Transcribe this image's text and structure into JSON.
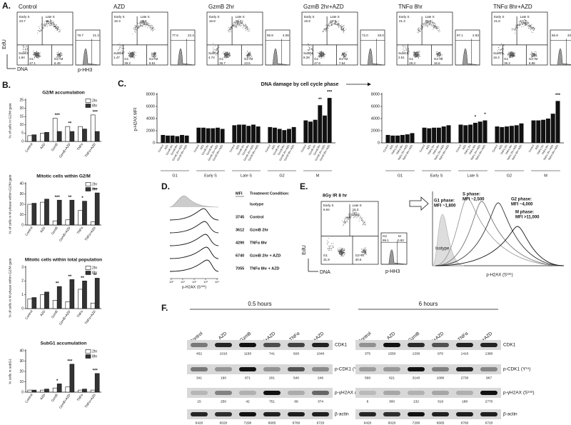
{
  "panel_a": {
    "label": "A.",
    "y_axis": "EdU",
    "x_axis": "DNA",
    "hist_axis": "p-HH3",
    "gate_labels": [
      "Early S",
      "Late S",
      "SubG1",
      "G1",
      "G2+M"
    ],
    "plots": [
      {
        "title": "Control",
        "gates": [
          "23.7",
          "18.9",
          "1.94",
          "47.1",
          "5.49"
        ],
        "hist": [
          "78.7",
          "21.3"
        ]
      },
      {
        "title": "AZD",
        "gates": [
          "32.3",
          "19.3",
          "1.47",
          "39.2",
          "5.81"
        ],
        "hist": [
          "77.6",
          "22.4"
        ]
      },
      {
        "title": "GzmB 2hr",
        "gates": [
          "16.8",
          "25.7",
          "4.74",
          "36.7",
          "13.5"
        ],
        "hist": [
          "95.9",
          "4.08"
        ]
      },
      {
        "title": "GzmB 2hr+AZD",
        "gates": [
          "15.9",
          "17.9",
          "8.28",
          "47.6",
          "7.64"
        ],
        "hist": [
          "72.0",
          "28.0"
        ]
      },
      {
        "title": "TNFα 8hr",
        "gates": [
          "21.3",
          "28.8",
          "2.61",
          "28.3",
          "16.6"
        ],
        "hist": [
          "97.1",
          "2.93"
        ]
      },
      {
        "title": "TNFα 8hr+AZD",
        "gates": [
          "21.8",
          "17.7",
          "16.3",
          "35.2",
          "6.86"
        ],
        "hist": [
          "66.9",
          "33.1"
        ]
      }
    ]
  },
  "panel_b": {
    "label": "B.",
    "categories": [
      "Control",
      "AZD",
      "GzmB",
      "GzmB+AZD",
      "TNFα",
      "TNFα+AZD"
    ],
    "charts": [
      {
        "title": "G2/M accumulation",
        "ylabel": "% of cells in G2/M gate",
        "ylim": [
          0,
          25
        ],
        "yticks": [
          0,
          5,
          10,
          15,
          20,
          25
        ],
        "series": [
          {
            "name": "2hr",
            "color": "#ffffff",
            "values": [
              3.5,
              5,
              14,
              9,
              9,
              16
            ]
          },
          {
            "name": "8hr",
            "color": "#333333",
            "values": [
              4,
              5.5,
              6,
              6,
              7.5,
              6
            ]
          }
        ],
        "annotations": [
          "***",
          "**",
          "***"
        ]
      },
      {
        "title": "Mitotic cells within G2/M",
        "ylabel": "% of cells in M-phase within G2/M gate",
        "ylim": [
          0,
          40
        ],
        "yticks": [
          0,
          10,
          20,
          30,
          40
        ],
        "series": [
          {
            "name": "2hr",
            "color": "#ffffff",
            "values": [
              20,
              22,
              4,
              5,
              14,
              3
            ]
          },
          {
            "name": "8hr",
            "color": "#333333",
            "values": [
              21,
              25,
              24,
              24,
              23,
              31
            ]
          }
        ],
        "annotations": [
          "***",
          "**",
          "*",
          "***"
        ]
      },
      {
        "title": "Mitotic cells within total population",
        "ylabel": "% of cells in M-phase within G2/M gate",
        "ylim": [
          0,
          3
        ],
        "yticks": [
          0,
          1,
          2,
          3
        ],
        "series": [
          {
            "name": "2hr",
            "color": "#ffffff",
            "values": [
              0.7,
              1.0,
              0.6,
              0.5,
              1.4,
              0.4
            ]
          },
          {
            "name": "8hr",
            "color": "#333333",
            "values": [
              0.8,
              1.2,
              1.6,
              2.1,
              2.0,
              2.2
            ]
          }
        ],
        "annotations": [
          "**",
          "**",
          "**",
          "**"
        ]
      },
      {
        "title": "SubG1 accumulation",
        "ylabel": "% cells in subG1",
        "ylim": [
          0,
          40
        ],
        "yticks": [
          0,
          10,
          20,
          30,
          40
        ],
        "series": [
          {
            "name": "2hr",
            "color": "#ffffff",
            "values": [
              2,
              2,
              4,
              5,
              2,
              2
            ]
          },
          {
            "name": "8hr",
            "color": "#333333",
            "values": [
              2,
              3,
              8,
              27,
              3,
              18
            ]
          }
        ],
        "annotations": [
          "*",
          "***",
          "***"
        ]
      }
    ]
  },
  "panel_c": {
    "label": "C.",
    "title": "DNA damage by cell cycle phase",
    "ylabel": "p-H2AX MFI",
    "color": "#111111",
    "ylim": [
      0,
      8000
    ],
    "yticks": [
      0,
      2000,
      4000,
      6000,
      8000
    ],
    "phases": [
      "G1",
      "Early S",
      "Late S",
      "G2",
      "M"
    ],
    "charts": [
      {
        "series": [
          {
            "name": "Control",
            "values": [
              1300,
              2500,
              2900,
              2600,
              3700
            ]
          },
          {
            "name": "AZD",
            "values": [
              1200,
              2500,
              3000,
              2500,
              3500
            ]
          },
          {
            "name": "GzmB 2hr",
            "values": [
              1200,
              2400,
              3000,
              2300,
              3800
            ]
          },
          {
            "name": "GzmB 8hr",
            "values": [
              1100,
              2400,
              2800,
              2100,
              6200
            ]
          },
          {
            "name": "GzmB 2hr+AZD",
            "values": [
              1300,
              2500,
              3000,
              2300,
              4500
            ]
          },
          {
            "name": "GzmB 8hr+AZD",
            "values": [
              1200,
              2300,
              2700,
              2600,
              7400
            ]
          }
        ],
        "annotations": [
          "**",
          "***"
        ]
      },
      {
        "series": [
          {
            "name": "Control",
            "values": [
              1300,
              2500,
              3000,
              2700,
              3700
            ]
          },
          {
            "name": "AZD",
            "values": [
              1200,
              2400,
              2900,
              2600,
              3700
            ]
          },
          {
            "name": "TNFα 2hr",
            "values": [
              1200,
              2500,
              3000,
              2700,
              3800
            ]
          },
          {
            "name": "TNFα 8hr",
            "values": [
              1300,
              2500,
              3300,
              2800,
              4000
            ]
          },
          {
            "name": "TNFα 2hr+AZD",
            "values": [
              1400,
              2700,
              3500,
              2900,
              4800
            ]
          },
          {
            "name": "TNFα 8hr+AZD",
            "values": [
              1600,
              2900,
              3700,
              3200,
              6900
            ]
          }
        ],
        "annotations": [
          "*",
          "*",
          "***"
        ]
      }
    ]
  },
  "panel_d": {
    "label": "D.",
    "mfi_header": "MFI",
    "condition_header": "Treatment Condition:",
    "rows": [
      {
        "condition": "Isotype"
      },
      {
        "mfi": "3745",
        "condition": "Control"
      },
      {
        "mfi": "3612",
        "condition": "GzmB 2hr"
      },
      {
        "mfi": "4290",
        "condition": "TNFα 8hr"
      },
      {
        "mfi": "6740",
        "condition": "GzmB 2hr + AZD"
      },
      {
        "mfi": "7055",
        "condition": "TNFα 8hr + AZD"
      }
    ],
    "xticks": [
      "10⁰",
      "10¹",
      "10²",
      "10³",
      "10⁴"
    ],
    "xlabel": "p-H2AX (S¹³⁹)"
  },
  "panel_e": {
    "label": "E.",
    "condition": "8Gy IR 8 hr",
    "y_axis": "EdU",
    "x_axis": "DNA",
    "hist_axis": "p-HH3",
    "gate_labels": [
      "Early S",
      "Late S",
      "G1",
      "G2+M"
    ],
    "gates": [
      "8.94",
      "15.3",
      "31.9",
      "30.6"
    ],
    "hist_labels": [
      "G2",
      "M"
    ],
    "hist": [
      "99.1",
      "0.93"
    ],
    "phases": [
      [
        "G1 phase:",
        "MFI ~1,800"
      ],
      [
        "S phase:",
        "MFI ~2,500"
      ],
      [
        "G2 phase:",
        "MFI ~4,000"
      ],
      [
        "M phase:",
        "MFI >11,000"
      ]
    ],
    "isotype": "Isotype",
    "xlabel": "p-H2AX (S¹³⁹)"
  },
  "panel_f": {
    "label": "F.",
    "lanes": [
      "Control",
      "AZD",
      "GzmB",
      "GzmB+AZD",
      "TNFα",
      "TNFα+AZD"
    ],
    "blots": [
      {
        "time": "0.5 hours",
        "rows": [
          {
            "name": "CDK1",
            "values": [
              452,
              1010,
              1150,
              741,
              828,
              1040
            ]
          },
          {
            "name": "p-CDK1 (Y¹⁵)",
            "values": [
              341,
              190,
              871,
              201,
              540,
              246
            ]
          },
          {
            "name": "p-γH2AX (S¹³⁹)",
            "values": [
              15,
              250,
              42,
              751,
              68,
              374
            ]
          },
          {
            "name": "β-actin",
            "values": [
              6420,
              6020,
              7290,
              6665,
              6760,
              6720
            ]
          }
        ]
      },
      {
        "time": "6 hours",
        "rows": [
          {
            "name": "CDK1",
            "values": [
              375,
              1550,
              1330,
              970,
              1410,
              1380
            ]
          },
          {
            "name": "p-CDK1 (Y¹⁵)",
            "values": [
              568,
              621,
              3140,
              1080,
              2730,
              967
            ]
          },
          {
            "name": "p-γH2AX (S¹³⁹)",
            "values": [
              6,
              300,
              132,
              319,
              188,
              2770
            ]
          },
          {
            "name": "β-actin",
            "values": [
              6420,
              6020,
              7290,
              6665,
              6760,
              6720
            ]
          }
        ]
      }
    ]
  }
}
